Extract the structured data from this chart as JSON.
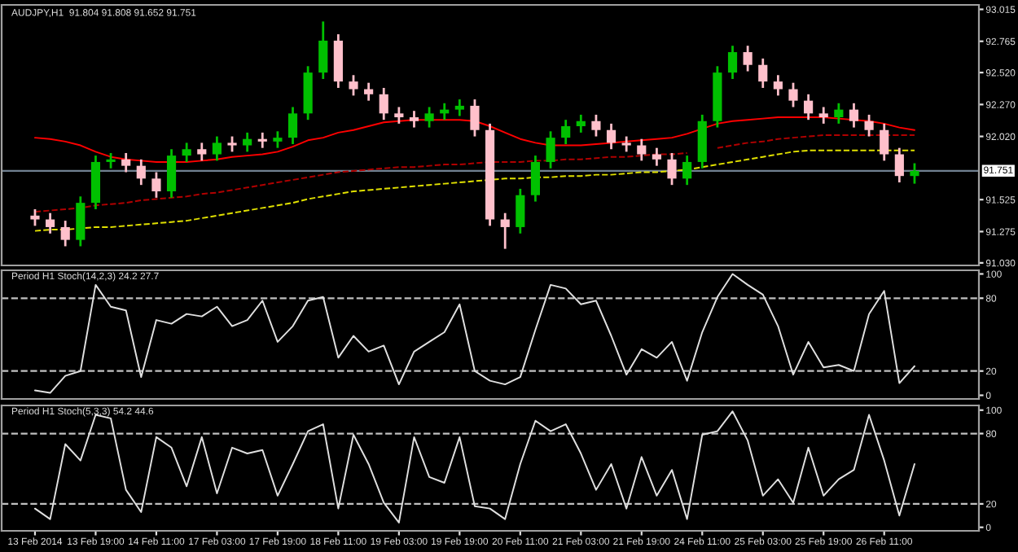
{
  "chart_data": [
    {
      "type": "candlestick",
      "title": "AUDJPY,H1  91.804 91.808 91.652 91.751",
      "categories": [
        null,
        null,
        null,
        null,
        null,
        null,
        null,
        null,
        null,
        null,
        null,
        null,
        null,
        null,
        null,
        null,
        null,
        null,
        null,
        null,
        null,
        null,
        null,
        null,
        null,
        null,
        null,
        null,
        null,
        null,
        null,
        null,
        null,
        null,
        null,
        null,
        null,
        null,
        null,
        null,
        null,
        null,
        null,
        null,
        null,
        null,
        null,
        null,
        null,
        null,
        null,
        null,
        null,
        null,
        null,
        null,
        null,
        null,
        null
      ],
      "ohlc": [
        [
          91.4,
          91.45,
          91.32,
          91.37
        ],
        [
          91.37,
          91.42,
          91.26,
          91.31
        ],
        [
          91.31,
          91.36,
          91.16,
          91.21
        ],
        [
          91.21,
          91.55,
          91.16,
          91.5
        ],
        [
          91.5,
          91.87,
          91.45,
          91.82
        ],
        [
          91.82,
          91.89,
          91.77,
          91.84
        ],
        [
          91.84,
          91.89,
          91.74,
          91.79
        ],
        [
          91.79,
          91.84,
          91.64,
          91.69
        ],
        [
          91.69,
          91.74,
          91.54,
          91.59
        ],
        [
          91.59,
          91.92,
          91.54,
          91.87
        ],
        [
          91.87,
          91.97,
          91.82,
          91.92
        ],
        [
          91.92,
          91.97,
          91.83,
          91.88
        ],
        [
          91.88,
          92.02,
          91.83,
          91.97
        ],
        [
          91.97,
          92.02,
          91.9,
          91.95
        ],
        [
          91.95,
          92.05,
          91.9,
          92.0
        ],
        [
          92.0,
          92.05,
          91.93,
          91.98
        ],
        [
          91.98,
          92.06,
          91.93,
          92.01
        ],
        [
          92.01,
          92.25,
          91.96,
          92.2
        ],
        [
          92.2,
          92.57,
          92.15,
          92.52
        ],
        [
          92.52,
          92.92,
          92.47,
          92.77
        ],
        [
          92.77,
          92.82,
          92.4,
          92.45
        ],
        [
          92.45,
          92.5,
          92.34,
          92.39
        ],
        [
          92.39,
          92.44,
          92.3,
          92.35
        ],
        [
          92.35,
          92.4,
          92.15,
          92.2
        ],
        [
          92.2,
          92.25,
          92.12,
          92.17
        ],
        [
          92.17,
          92.22,
          92.09,
          92.14
        ],
        [
          92.14,
          92.25,
          92.09,
          92.2
        ],
        [
          92.2,
          92.28,
          92.15,
          92.23
        ],
        [
          92.23,
          92.31,
          92.18,
          92.26
        ],
        [
          92.26,
          92.31,
          92.02,
          92.07
        ],
        [
          92.07,
          92.12,
          91.32,
          91.37
        ],
        [
          91.37,
          91.42,
          91.14,
          91.31
        ],
        [
          91.31,
          91.61,
          91.26,
          91.56
        ],
        [
          91.56,
          91.87,
          91.51,
          91.82
        ],
        [
          91.82,
          92.06,
          91.77,
          92.01
        ],
        [
          92.01,
          92.15,
          91.96,
          92.1
        ],
        [
          92.1,
          92.19,
          92.05,
          92.14
        ],
        [
          92.14,
          92.19,
          92.02,
          92.07
        ],
        [
          92.07,
          92.12,
          91.92,
          91.97
        ],
        [
          91.97,
          92.02,
          91.9,
          91.95
        ],
        [
          91.95,
          92.0,
          91.83,
          91.88
        ],
        [
          91.88,
          91.93,
          91.79,
          91.84
        ],
        [
          91.84,
          91.89,
          91.64,
          91.69
        ],
        [
          91.69,
          91.87,
          91.64,
          91.82
        ],
        [
          91.82,
          92.19,
          91.77,
          92.14
        ],
        [
          92.14,
          92.57,
          92.09,
          92.52
        ],
        [
          92.52,
          92.73,
          92.47,
          92.68
        ],
        [
          92.68,
          92.73,
          92.53,
          92.58
        ],
        [
          92.58,
          92.63,
          92.4,
          92.45
        ],
        [
          92.45,
          92.5,
          92.34,
          92.39
        ],
        [
          92.39,
          92.44,
          92.25,
          92.3
        ],
        [
          92.3,
          92.35,
          92.15,
          92.2
        ],
        [
          92.2,
          92.25,
          92.12,
          92.17
        ],
        [
          92.17,
          92.28,
          92.12,
          92.23
        ],
        [
          92.23,
          92.28,
          92.09,
          92.14
        ],
        [
          92.14,
          92.19,
          92.02,
          92.07
        ],
        [
          92.07,
          92.12,
          91.83,
          91.88
        ],
        [
          91.88,
          91.93,
          91.66,
          91.71
        ],
        [
          91.71,
          91.81,
          91.65,
          91.75
        ]
      ],
      "colors": [
        "#ffc0cb",
        "#ffc0cb",
        "#ffc0cb",
        "#00c000",
        "#00c000",
        "#00c000",
        "#ffc0cb",
        "#ffc0cb",
        "#ffc0cb",
        "#00c000",
        "#00c000",
        "#ffc0cb",
        "#00c000",
        "#ffc0cb",
        "#00c000",
        "#ffc0cb",
        "#00c000",
        "#00c000",
        "#00c000",
        "#00c000",
        "#ffc0cb",
        "#ffc0cb",
        "#ffc0cb",
        "#ffc0cb",
        "#ffc0cb",
        "#ffc0cb",
        "#00c000",
        "#00c000",
        "#00c000",
        "#ffc0cb",
        "#ffc0cb",
        "#ffc0cb",
        "#00c000",
        "#00c000",
        "#00c000",
        "#00c000",
        "#00c000",
        "#ffc0cb",
        "#ffc0cb",
        "#ffc0cb",
        "#ffc0cb",
        "#ffc0cb",
        "#ffc0cb",
        "#00c000",
        "#00c000",
        "#00c000",
        "#00c000",
        "#ffc0cb",
        "#ffc0cb",
        "#ffc0cb",
        "#ffc0cb",
        "#ffc0cb",
        "#ffc0cb",
        "#00c000",
        "#ffc0cb",
        "#ffc0cb",
        "#ffc0cb",
        "#ffc0cb",
        "#00c000"
      ],
      "series": [
        {
          "type": "line",
          "color": "#ff0000",
          "line_style": "solid",
          "values": [
            92.01,
            92.0,
            91.98,
            91.95,
            91.9,
            91.86,
            91.84,
            91.83,
            91.82,
            91.82,
            91.82,
            91.83,
            91.84,
            91.86,
            91.87,
            91.88,
            91.9,
            91.94,
            91.99,
            92.01,
            92.05,
            92.07,
            92.1,
            92.13,
            92.14,
            92.15,
            92.15,
            92.15,
            92.15,
            92.14,
            92.1,
            92.05,
            92.0,
            91.97,
            91.95,
            91.95,
            91.95,
            91.96,
            91.97,
            91.98,
            91.99,
            92.0,
            92.01,
            92.04,
            92.08,
            92.12,
            92.14,
            92.15,
            92.16,
            92.17,
            92.17,
            92.17,
            92.17,
            92.16,
            92.15,
            92.14,
            92.12,
            92.09,
            92.07
          ]
        },
        {
          "type": "line",
          "color": "#b00000",
          "line_style": "dashed",
          "values": [
            91.43,
            91.44,
            91.45,
            91.46,
            91.48,
            91.49,
            91.5,
            91.52,
            91.53,
            91.54,
            91.55,
            91.57,
            91.58,
            91.6,
            91.62,
            91.64,
            91.66,
            91.68,
            91.7,
            91.72,
            91.74,
            91.75,
            91.76,
            91.77,
            91.78,
            91.78,
            91.79,
            91.8,
            91.8,
            91.81,
            91.82,
            91.82,
            91.82,
            91.83,
            91.83,
            91.84,
            91.84,
            91.85,
            91.86,
            91.86,
            91.87,
            91.88,
            91.88,
            91.89,
            null,
            91.93,
            91.95,
            91.97,
            91.98,
            92.0,
            92.01,
            92.02,
            92.03,
            92.03,
            92.03,
            92.03,
            92.03,
            92.03,
            92.03
          ]
        },
        {
          "type": "line",
          "color": "#e0e000",
          "line_style": "dashed",
          "values": [
            91.28,
            91.29,
            91.29,
            91.3,
            91.31,
            91.31,
            91.32,
            91.33,
            91.34,
            91.35,
            91.36,
            91.38,
            91.4,
            91.42,
            91.44,
            91.46,
            91.48,
            91.5,
            91.53,
            91.55,
            91.57,
            91.59,
            91.6,
            91.61,
            91.62,
            91.63,
            91.64,
            91.65,
            91.66,
            91.67,
            91.68,
            91.69,
            91.69,
            91.7,
            91.7,
            91.71,
            91.71,
            91.72,
            91.72,
            91.73,
            91.74,
            91.74,
            91.75,
            91.76,
            91.78,
            91.8,
            91.82,
            91.84,
            91.86,
            91.88,
            91.9,
            91.91,
            91.91,
            91.91,
            91.91,
            91.91,
            91.91,
            91.91,
            91.91
          ]
        }
      ],
      "ylim": [
        91.01,
        93.05
      ],
      "yticks": [
        {
          "value": 91.03,
          "label": "91.030"
        },
        {
          "value": 91.275,
          "label": "91.275"
        },
        {
          "value": 91.525,
          "label": "91.525"
        },
        {
          "value": 92.02,
          "label": "92.020"
        },
        {
          "value": 92.27,
          "label": "92.270"
        },
        {
          "value": 92.52,
          "label": "92.520"
        },
        {
          "value": 92.765,
          "label": "92.765"
        },
        {
          "value": 93.015,
          "label": "93.015"
        }
      ],
      "ref_lines": [
        {
          "axis": "y",
          "value": 91.751,
          "label": "91.751",
          "color": "#708090",
          "line_style": "solid"
        }
      ],
      "tick_labels": "y",
      "grid": false,
      "legend": false
    },
    {
      "type": "line",
      "title": "Period H1 Stoch(14,2,3) 24.2 27.7",
      "categories": [
        null,
        null,
        null,
        null,
        null,
        null,
        null,
        null,
        null,
        null,
        null,
        null,
        null,
        null,
        null,
        null,
        null,
        null,
        null,
        null,
        null,
        null,
        null,
        null,
        null,
        null,
        null,
        null,
        null,
        null,
        null,
        null,
        null,
        null,
        null,
        null,
        null,
        null,
        null,
        null,
        null,
        null,
        null,
        null,
        null,
        null,
        null,
        null,
        null,
        null,
        null,
        null,
        null,
        null,
        null,
        null,
        null,
        null,
        null
      ],
      "series": [
        {
          "color": "#e0e0e0",
          "values": [
            4,
            2,
            16,
            20,
            91,
            73,
            70,
            15,
            62,
            59,
            67,
            65,
            73,
            57,
            62,
            78,
            44,
            57,
            78,
            81,
            31,
            49,
            36,
            41,
            9,
            36,
            44,
            52,
            75,
            20,
            12,
            9,
            15,
            54,
            91,
            88,
            75,
            78,
            49,
            17,
            38,
            31,
            44,
            12,
            52,
            81,
            100,
            91,
            83,
            57,
            17,
            44,
            23,
            25,
            20,
            67,
            86,
            10,
            24
          ]
        }
      ],
      "ylim": [
        -3,
        103
      ],
      "yticks": [
        0,
        20,
        80,
        100
      ],
      "ref_lines": [
        {
          "axis": "y",
          "value": 20,
          "color": "#c0c0c0",
          "line_style": "dashed"
        },
        {
          "axis": "y",
          "value": 80,
          "color": "#c0c0c0",
          "line_style": "dashed"
        }
      ],
      "tick_labels": "y",
      "grid": false,
      "legend": false
    },
    {
      "type": "line",
      "title": "Period H1 Stoch(5,3,3) 54.2 44.6",
      "categories": [
        "13 Feb 2014",
        null,
        null,
        null,
        "13 Feb 19:00",
        null,
        null,
        null,
        "14 Feb 11:00",
        null,
        null,
        null,
        "17 Feb 03:00",
        null,
        null,
        null,
        "17 Feb 19:00",
        null,
        null,
        null,
        "18 Feb 11:00",
        null,
        null,
        null,
        "19 Feb 03:00",
        null,
        null,
        null,
        "19 Feb 19:00",
        null,
        null,
        null,
        "20 Feb 11:00",
        null,
        null,
        null,
        "21 Feb 03:00",
        null,
        null,
        null,
        "21 Feb 19:00",
        null,
        null,
        null,
        "24 Feb 11:00",
        null,
        null,
        null,
        "25 Feb 03:00",
        null,
        null,
        null,
        "25 Feb 19:00",
        null,
        null,
        null,
        "26 Feb 11:00",
        null,
        null
      ],
      "series": [
        {
          "color": "#e0e0e0",
          "values": [
            16,
            7,
            71,
            57,
            96,
            93,
            32,
            13,
            77,
            68,
            35,
            77,
            29,
            68,
            63,
            66,
            27,
            54,
            82,
            88,
            16,
            79,
            54,
            21,
            4,
            77,
            43,
            38,
            77,
            18,
            16,
            7,
            54,
            91,
            82,
            88,
            63,
            32,
            54,
            16,
            60,
            27,
            49,
            7,
            79,
            82,
            99,
            74,
            27,
            41,
            21,
            68,
            27,
            41,
            49,
            96,
            57,
            10,
            54
          ]
        }
      ],
      "ylim": [
        -3,
        104
      ],
      "yticks": [
        0,
        20,
        80,
        100
      ],
      "ref_lines": [
        {
          "axis": "y",
          "value": 20,
          "color": "#c0c0c0",
          "line_style": "dashed"
        },
        {
          "axis": "y",
          "value": 80,
          "color": "#c0c0c0",
          "line_style": "dashed"
        }
      ],
      "grid": false,
      "legend": false
    }
  ]
}
